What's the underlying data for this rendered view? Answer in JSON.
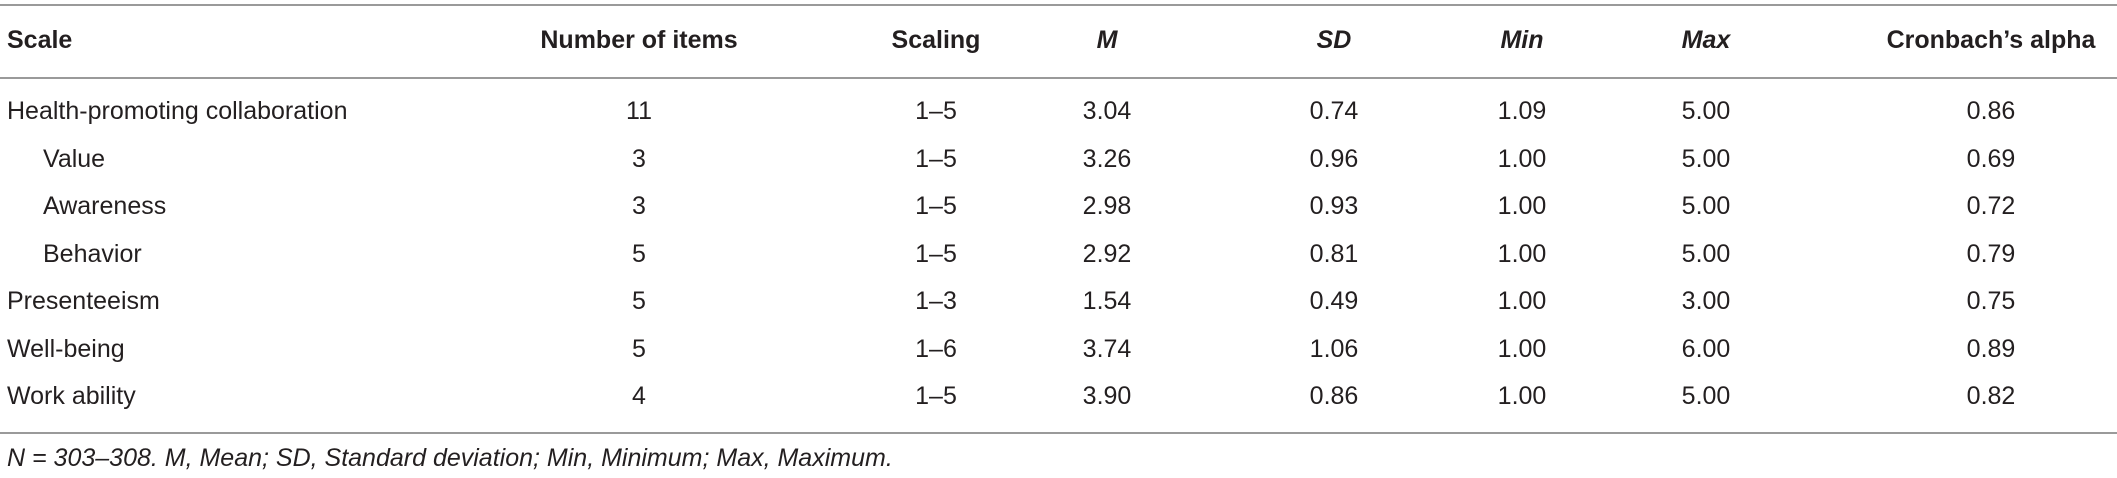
{
  "table": {
    "header": [
      "Scale",
      "Number of items",
      "Scaling",
      "M",
      "SD",
      "Min",
      "Max",
      "Cronbach’s alpha"
    ],
    "rows": [
      [
        "Health-promoting collaboration",
        "11",
        "1–5",
        "3.04",
        "0.74",
        "1.09",
        "5.00",
        "0.86"
      ],
      [
        "Value",
        "3",
        "1–5",
        "3.26",
        "0.96",
        "1.00",
        "5.00",
        "0.69"
      ],
      [
        "Awareness",
        "3",
        "1–5",
        "2.98",
        "0.93",
        "1.00",
        "5.00",
        "0.72"
      ],
      [
        "Behavior",
        "5",
        "1–5",
        "2.92",
        "0.81",
        "1.00",
        "5.00",
        "0.79"
      ],
      [
        "Presenteeism",
        "5",
        "1–3",
        "1.54",
        "0.49",
        "1.00",
        "3.00",
        "0.75"
      ],
      [
        "Well-being",
        "5",
        "1–6",
        "3.74",
        "1.06",
        "1.00",
        "6.00",
        "0.89"
      ],
      [
        "Work ability",
        "4",
        "1–5",
        "3.90",
        "0.86",
        "1.00",
        "5.00",
        "0.82"
      ]
    ],
    "footnote": "N = 303–308. M, Mean; SD, Standard deviation; Min, Minimum; Max, Maximum."
  }
}
